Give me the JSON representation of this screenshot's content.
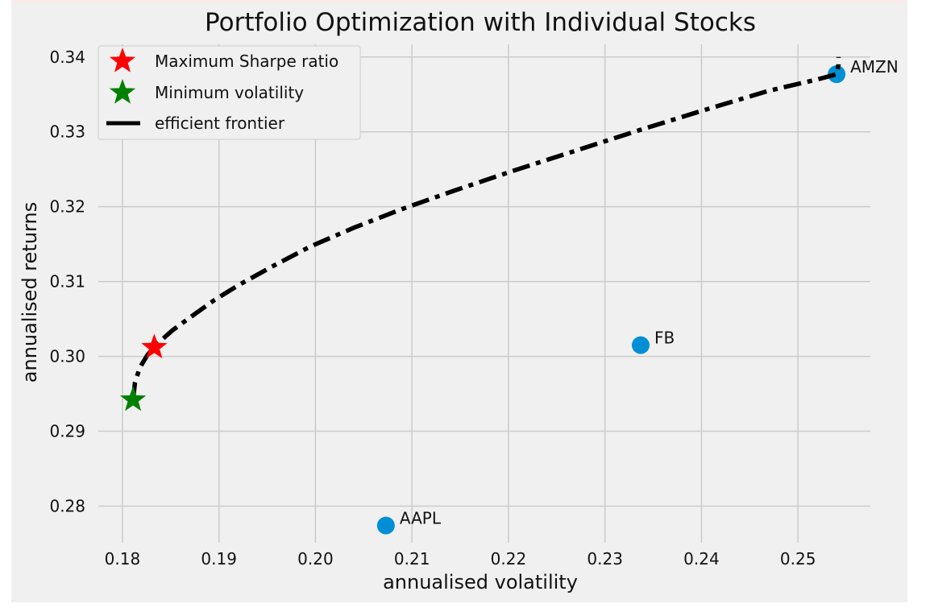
{
  "chart_data": {
    "type": "scatter",
    "title": "Portfolio Optimization with Individual Stocks",
    "xlabel": "annualised volatility",
    "ylabel": "annualised returns",
    "xlim": [
      0.1775,
      0.2575
    ],
    "ylim": [
      0.2751,
      0.3417
    ],
    "xticks": [
      0.18,
      0.19,
      0.2,
      0.21,
      0.22,
      0.23,
      0.24,
      0.25
    ],
    "xtick_labels": [
      "0.18",
      "0.19",
      "0.20",
      "0.21",
      "0.22",
      "0.23",
      "0.24",
      "0.25"
    ],
    "yticks": [
      0.28,
      0.29,
      0.3,
      0.31,
      0.32,
      0.33,
      0.34
    ],
    "ytick_labels": [
      "0.28",
      "0.29",
      "0.30",
      "0.31",
      "0.32",
      "0.33",
      "0.34"
    ],
    "grid": true,
    "legend_position": "top-left",
    "legend": [
      {
        "label": "Maximum Sharpe ratio",
        "marker": "star",
        "color": "#ff0000"
      },
      {
        "label": "Minimum volatility",
        "marker": "star",
        "color": "#008000"
      },
      {
        "label": "efficient frontier",
        "marker": "dashdot-line",
        "color": "#000000"
      }
    ],
    "stocks": [
      {
        "name": "AAPL",
        "x": 0.2073,
        "y": 0.2774
      },
      {
        "name": "FB",
        "x": 0.2337,
        "y": 0.3015
      },
      {
        "name": "AMZN",
        "x": 0.254,
        "y": 0.3377
      }
    ],
    "max_sharpe": {
      "x": 0.1833,
      "y": 0.3012
    },
    "min_volatility": {
      "x": 0.1811,
      "y": 0.2942
    },
    "efficient_frontier": {
      "x": [
        0.1811,
        0.1813,
        0.1818,
        0.1826,
        0.1837,
        0.1852,
        0.187,
        0.1895,
        0.192,
        0.1955,
        0.1995,
        0.204,
        0.209,
        0.2145,
        0.2205,
        0.227,
        0.2335,
        0.24,
        0.247,
        0.252,
        0.254,
        0.2542,
        0.2542
      ],
      "y": [
        0.2942,
        0.2965,
        0.2985,
        0.3002,
        0.3018,
        0.3035,
        0.3052,
        0.3075,
        0.3095,
        0.312,
        0.3147,
        0.3172,
        0.3197,
        0.3222,
        0.3248,
        0.3275,
        0.3302,
        0.3328,
        0.3355,
        0.337,
        0.3377,
        0.339,
        0.34
      ]
    },
    "colors": {
      "background": "#f0f0f0",
      "grid": "#cbcbcb",
      "stock_marker": "#008fd5",
      "frontier": "#000000",
      "max_sharpe": "#ff0000",
      "min_volatility": "#008000"
    }
  }
}
